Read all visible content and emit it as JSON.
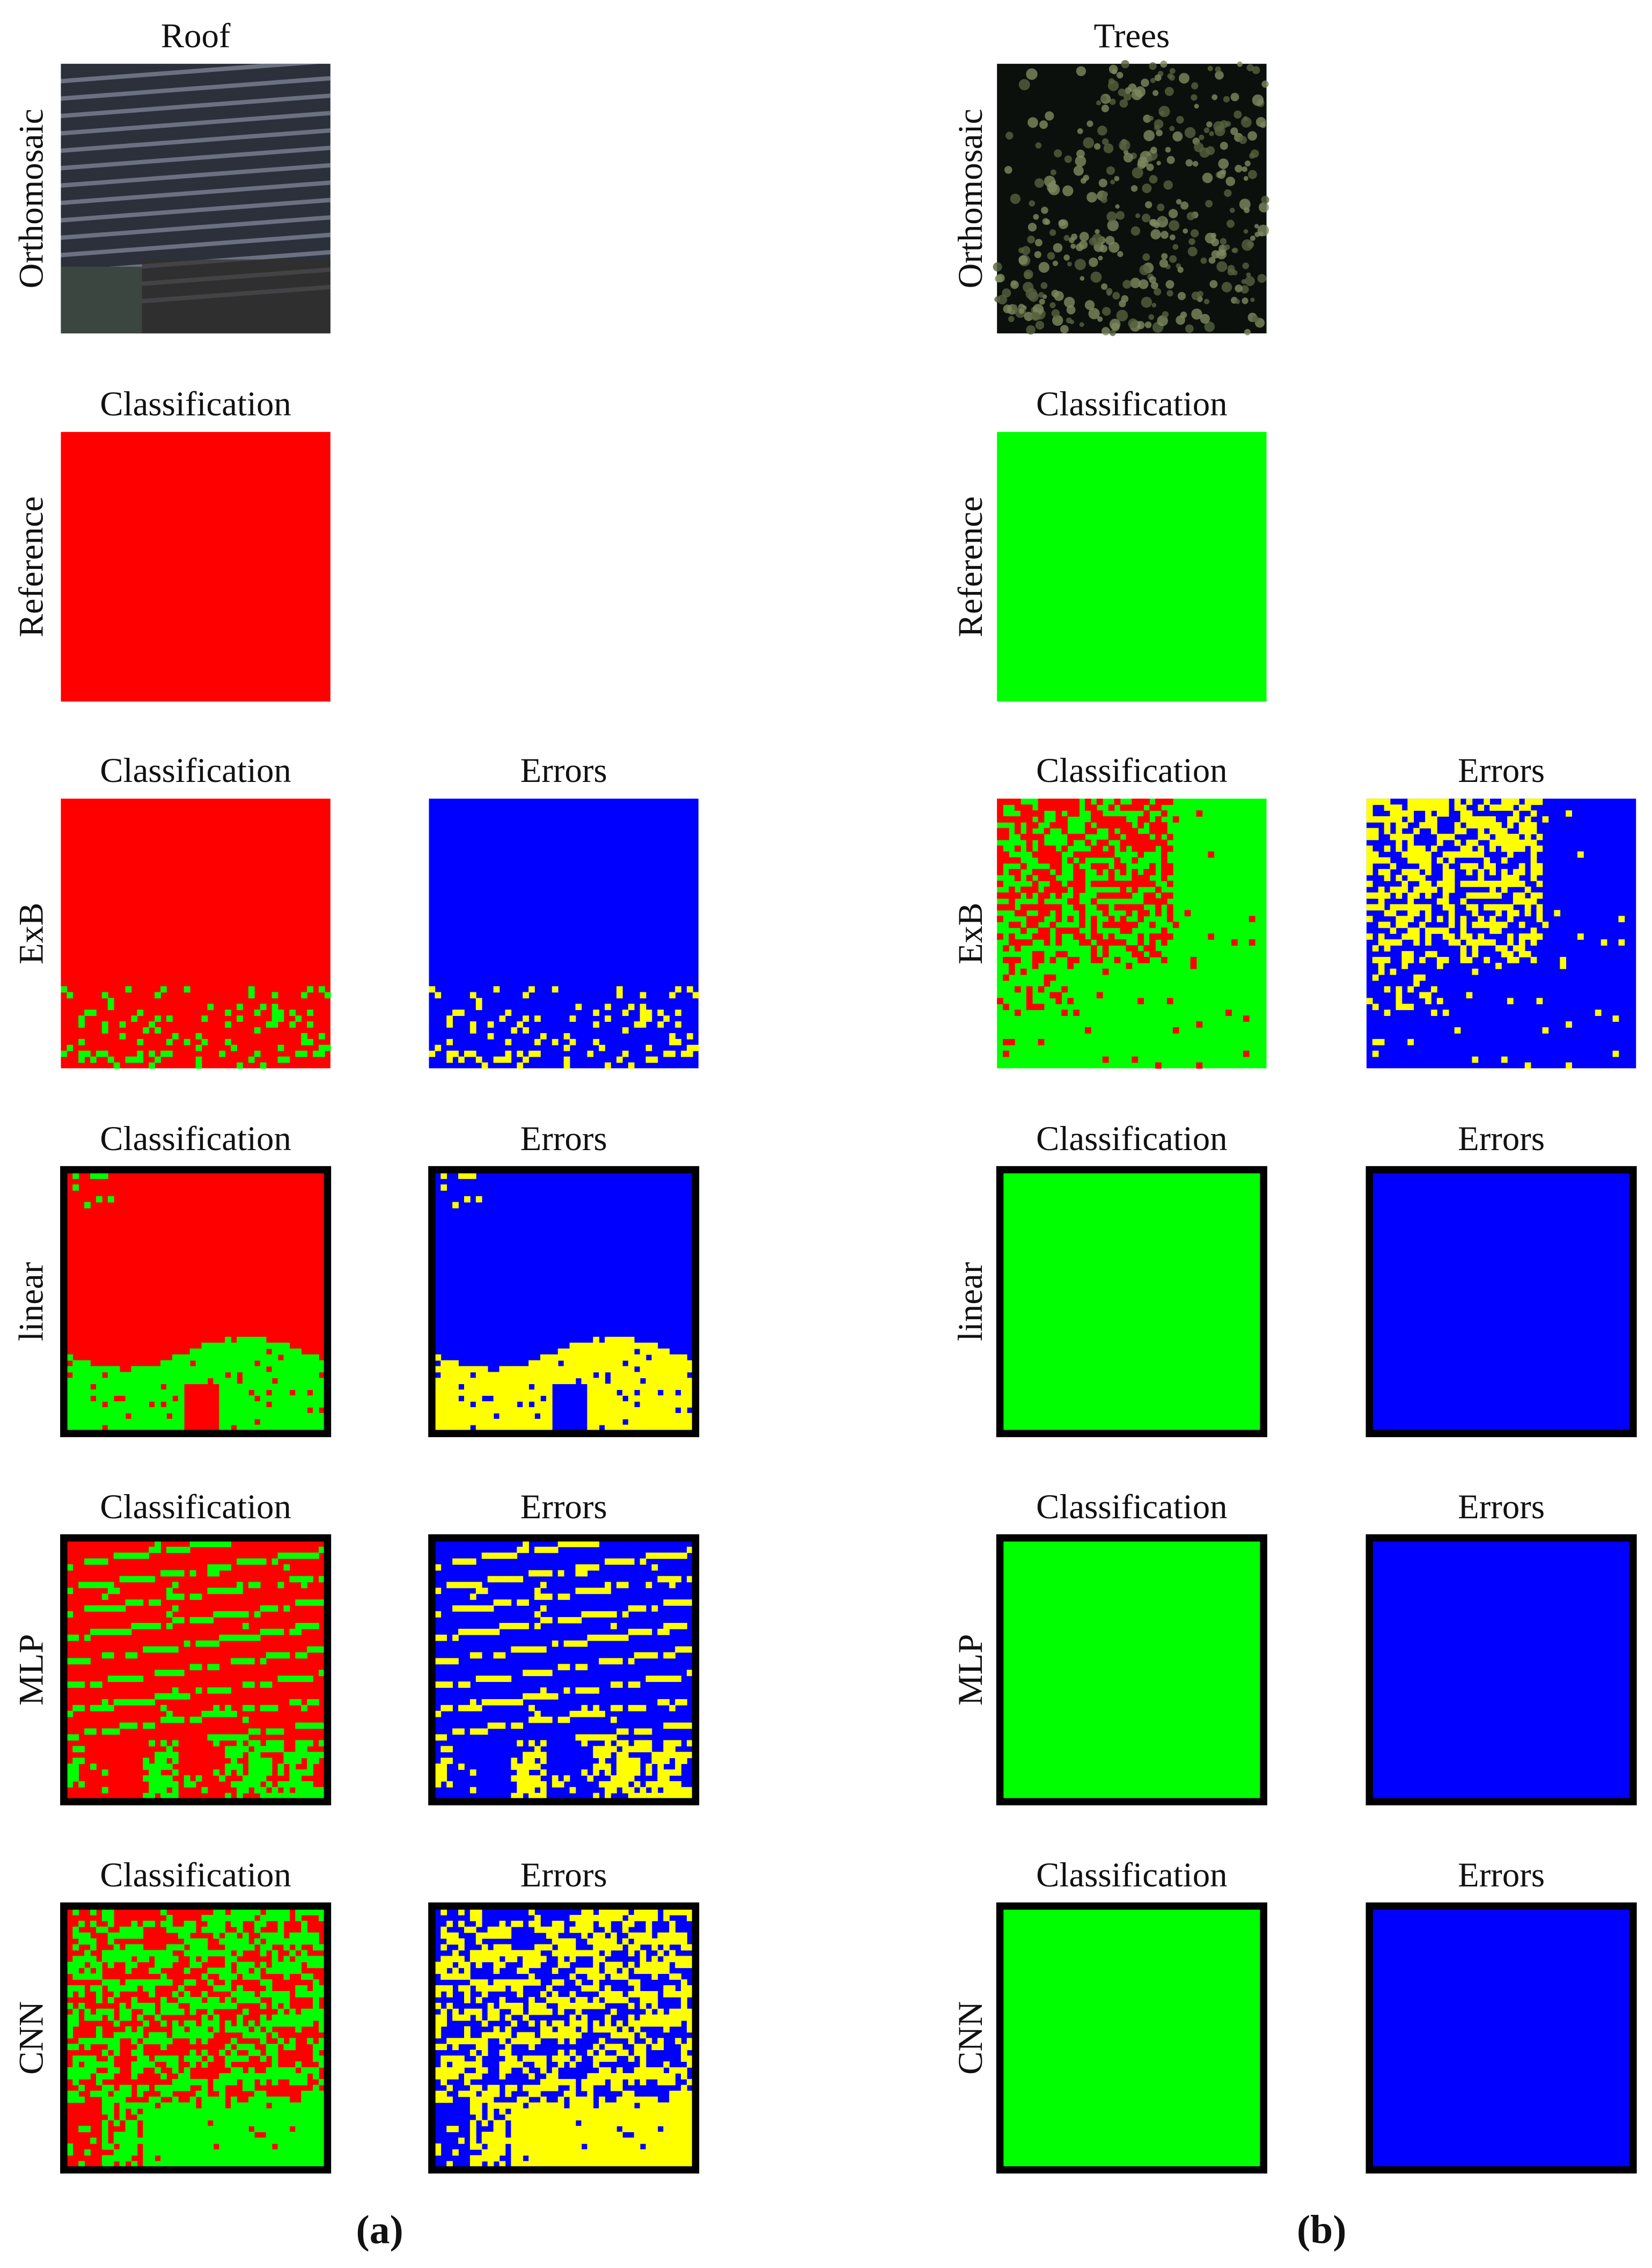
{
  "panels": [
    {
      "title": "Roof",
      "caption": "(a)",
      "rows": [
        {
          "label": "Orthomosaic",
          "columns": []
        },
        {
          "label": "Reference",
          "columns": [
            "Classification"
          ]
        },
        {
          "label": "ExB",
          "columns": [
            "Classification",
            "Errors"
          ]
        },
        {
          "label": "linear",
          "columns": [
            "Classification",
            "Errors"
          ]
        },
        {
          "label": "MLP",
          "columns": [
            "Classification",
            "Errors"
          ]
        },
        {
          "label": "CNN",
          "columns": [
            "Classification",
            "Errors"
          ]
        }
      ]
    },
    {
      "title": "Trees",
      "caption": "(b)",
      "rows": [
        {
          "label": "Orthomosaic",
          "columns": []
        },
        {
          "label": "Reference",
          "columns": [
            "Classification"
          ]
        },
        {
          "label": "ExB",
          "columns": [
            "Classification",
            "Errors"
          ]
        },
        {
          "label": "linear",
          "columns": [
            "Classification",
            "Errors"
          ]
        },
        {
          "label": "MLP",
          "columns": [
            "Classification",
            "Errors"
          ]
        },
        {
          "label": "CNN",
          "columns": [
            "Classification",
            "Errors"
          ]
        }
      ]
    }
  ]
}
